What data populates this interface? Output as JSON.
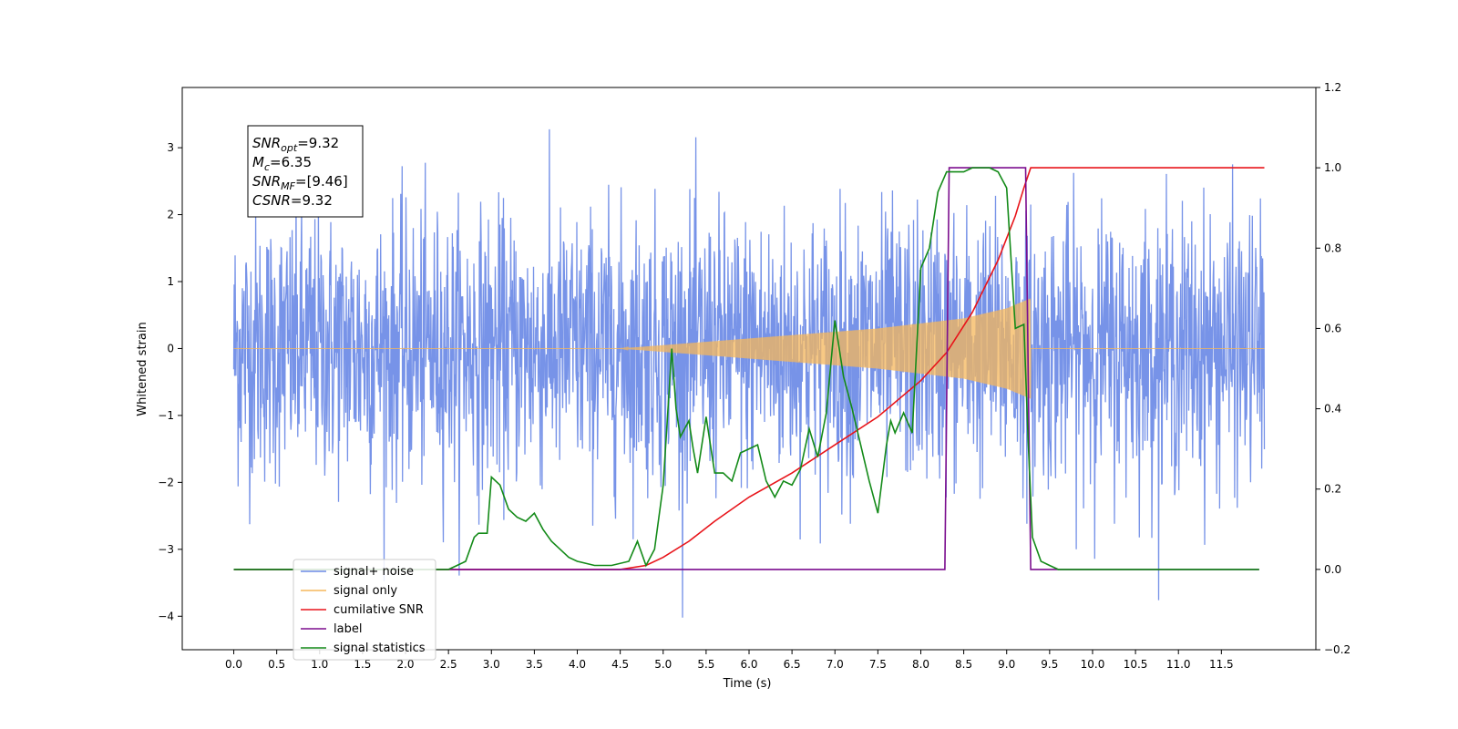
{
  "chart_data": {
    "type": "line",
    "xlabel": "Time (s)",
    "ylabel": "Whitened strain",
    "xlim": [
      -0.6,
      12.6
    ],
    "ylim": [
      -4.5,
      3.9
    ],
    "y2lim": [
      -0.2,
      1.2
    ],
    "x_ticks": [
      "0.0",
      "0.5",
      "1.0",
      "1.5",
      "2.0",
      "2.5",
      "3.0",
      "3.5",
      "4.0",
      "4.5",
      "5.0",
      "5.5",
      "6.0",
      "6.5",
      "7.0",
      "7.5",
      "8.0",
      "8.5",
      "9.0",
      "9.5",
      "10.0",
      "10.5",
      "11.0",
      "11.5"
    ],
    "y_ticks": [
      "3",
      "2",
      "1",
      "0",
      "−1",
      "−2",
      "−3",
      "−4"
    ],
    "y2_ticks": [
      "1.2",
      "1.0",
      "0.8",
      "0.6",
      "0.4",
      "0.2",
      "0.0",
      "−0.2"
    ],
    "annotation": [
      {
        "symbol": "SNR",
        "sub": "opt",
        "value": "=9.32"
      },
      {
        "symbol": "M",
        "sub": "c",
        "value": "=6.35"
      },
      {
        "symbol": "SNR",
        "sub": "MF",
        "value": "=[9.46]"
      },
      {
        "symbol": "CSNR",
        "sub": "",
        "value": "=9.32"
      }
    ],
    "legend_placement": "lower-left",
    "series": [
      {
        "name": "signal+ noise",
        "color": "#6b8ae6",
        "axis": "left",
        "description_type": "noise",
        "x_range": [
          0.0,
          12.0
        ],
        "noise_std": 1.0
      },
      {
        "name": "signal only",
        "color": "#f5b75b",
        "axis": "left",
        "description_type": "chirp",
        "x_range": [
          0.0,
          12.0
        ],
        "amplitude": [
          0,
          0,
          0.05,
          0.1,
          0.2,
          0.3,
          0.45,
          0.6,
          0.75
        ],
        "amplitude_x": [
          0,
          4.5,
          5.0,
          5.5,
          6.5,
          7.5,
          8.5,
          9.0,
          9.28
        ]
      },
      {
        "name": "cumilative SNR",
        "color": "#e8141a",
        "axis": "right",
        "x": [
          0.0,
          4.5,
          4.8,
          5.0,
          5.3,
          5.6,
          6.0,
          6.5,
          7.0,
          7.5,
          8.0,
          8.3,
          8.6,
          8.9,
          9.1,
          9.2,
          9.28,
          9.3,
          12.0
        ],
        "y": [
          0.0,
          0.0,
          0.01,
          0.03,
          0.07,
          0.12,
          0.18,
          0.24,
          0.31,
          0.38,
          0.47,
          0.54,
          0.64,
          0.77,
          0.88,
          0.95,
          1.0,
          1.0,
          1.0
        ]
      },
      {
        "name": "label",
        "color": "#7b0d8e",
        "axis": "right",
        "x": [
          0.0,
          8.28,
          8.33,
          9.22,
          9.28,
          11.94
        ],
        "y": [
          0.0,
          0.0,
          1.0,
          1.0,
          0.0,
          0.0
        ]
      },
      {
        "name": "signal statistics",
        "color": "#138a18",
        "axis": "right",
        "x": [
          0.0,
          2.5,
          2.6,
          2.7,
          2.8,
          2.85,
          2.95,
          3.0,
          3.1,
          3.2,
          3.3,
          3.4,
          3.5,
          3.6,
          3.7,
          3.8,
          3.9,
          4.0,
          4.2,
          4.4,
          4.6,
          4.7,
          4.8,
          4.9,
          5.0,
          5.1,
          5.15,
          5.2,
          5.3,
          5.35,
          5.4,
          5.5,
          5.6,
          5.7,
          5.8,
          5.9,
          6.0,
          6.1,
          6.2,
          6.3,
          6.4,
          6.5,
          6.6,
          6.7,
          6.8,
          6.9,
          7.0,
          7.1,
          7.2,
          7.3,
          7.4,
          7.5,
          7.6,
          7.65,
          7.7,
          7.8,
          7.9,
          8.0,
          8.1,
          8.2,
          8.3,
          8.4,
          8.5,
          8.6,
          8.7,
          8.8,
          8.9,
          9.0,
          9.1,
          9.2,
          9.25,
          9.3,
          9.4,
          9.5,
          9.6,
          10.0,
          11.0,
          11.94
        ],
        "y": [
          0.0,
          0.0,
          0.01,
          0.02,
          0.08,
          0.09,
          0.09,
          0.23,
          0.21,
          0.15,
          0.13,
          0.12,
          0.14,
          0.1,
          0.07,
          0.05,
          0.03,
          0.02,
          0.01,
          0.01,
          0.02,
          0.07,
          0.01,
          0.05,
          0.21,
          0.55,
          0.4,
          0.33,
          0.37,
          0.3,
          0.24,
          0.38,
          0.24,
          0.24,
          0.22,
          0.29,
          0.3,
          0.31,
          0.22,
          0.18,
          0.22,
          0.21,
          0.25,
          0.35,
          0.28,
          0.39,
          0.62,
          0.48,
          0.4,
          0.31,
          0.22,
          0.14,
          0.31,
          0.37,
          0.34,
          0.39,
          0.34,
          0.75,
          0.8,
          0.94,
          0.99,
          0.99,
          0.99,
          1.0,
          1.0,
          1.0,
          0.99,
          0.95,
          0.6,
          0.61,
          0.32,
          0.08,
          0.02,
          0.01,
          0.0,
          0.0,
          0.0,
          0.0
        ]
      }
    ]
  }
}
